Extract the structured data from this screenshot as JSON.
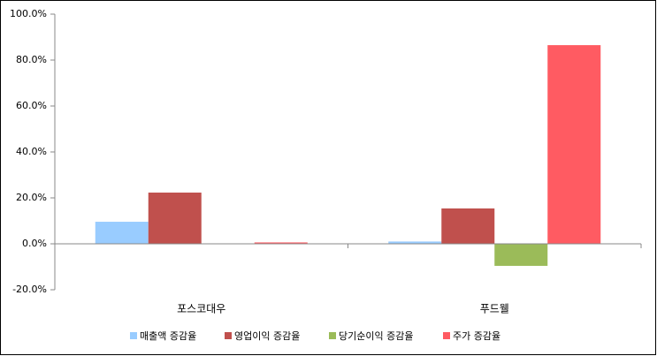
{
  "chart_data": {
    "type": "bar",
    "categories": [
      "포스코대우",
      "푸드웰"
    ],
    "series": [
      {
        "name": "매출액 증감율",
        "color": "#99ccff",
        "values": [
          9.6,
          1.0
        ]
      },
      {
        "name": "영업이익 증감율",
        "color": "#c0504d",
        "values": [
          22.3,
          15.4
        ]
      },
      {
        "name": "당기순이익 증감율",
        "color": "#9bbb59",
        "values": [
          0,
          -9.6
        ]
      },
      {
        "name": "주가 증감율",
        "color": "#ff5b62",
        "values": [
          0.6,
          86.5
        ]
      }
    ],
    "ylim": [
      -20,
      100
    ],
    "yticks": [
      {
        "value": -20,
        "label": "-20.0%"
      },
      {
        "value": 0,
        "label": "0.0%"
      },
      {
        "value": 20,
        "label": "20.0%"
      },
      {
        "value": 40,
        "label": "40.0%"
      },
      {
        "value": 60,
        "label": "60.0%"
      },
      {
        "value": 80,
        "label": "80.0%"
      },
      {
        "value": 100,
        "label": "100.0%"
      }
    ],
    "grid": false,
    "legend": "bottom"
  }
}
